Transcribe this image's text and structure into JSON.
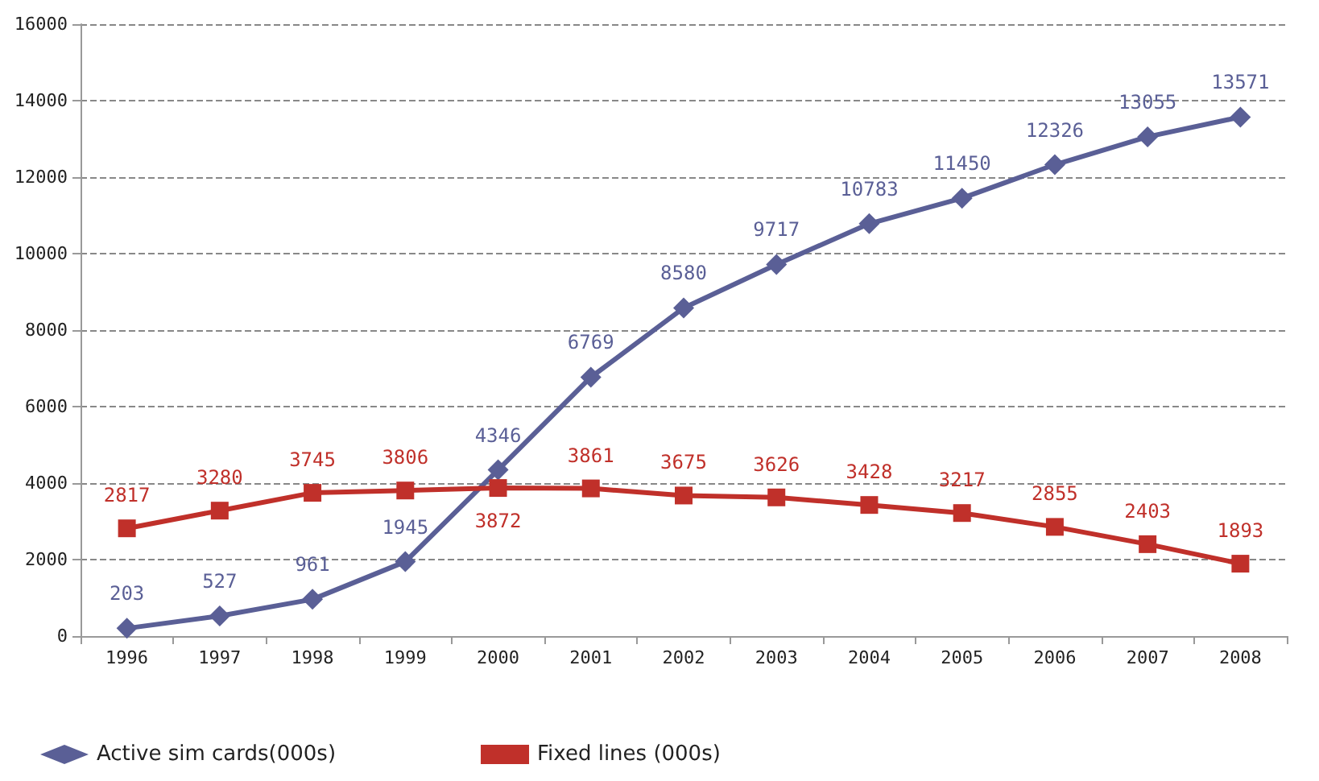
{
  "chart_data": {
    "type": "line",
    "categories": [
      "1996",
      "1997",
      "1998",
      "1999",
      "2000",
      "2001",
      "2002",
      "2003",
      "2004",
      "2005",
      "2006",
      "2007",
      "2008"
    ],
    "series": [
      {
        "name": "Active sim cards(000s)",
        "color": "#5a5f96",
        "marker": "diamond",
        "values": [
          203,
          527,
          961,
          1945,
          4346,
          6769,
          8580,
          9717,
          10783,
          11450,
          12326,
          13055,
          13571
        ]
      },
      {
        "name": "Fixed lines (000s)",
        "color": "#c0302a",
        "marker": "square",
        "values": [
          2817,
          3280,
          3745,
          3806,
          3872,
          3861,
          3675,
          3626,
          3428,
          3217,
          2855,
          2403,
          1893
        ]
      }
    ],
    "ylim": [
      0,
      16000
    ],
    "yticks": [
      0,
      2000,
      4000,
      6000,
      8000,
      10000,
      12000,
      14000,
      16000
    ],
    "grid": "y",
    "legend": "bottom left",
    "data_labels": true,
    "line_style": "solid"
  }
}
